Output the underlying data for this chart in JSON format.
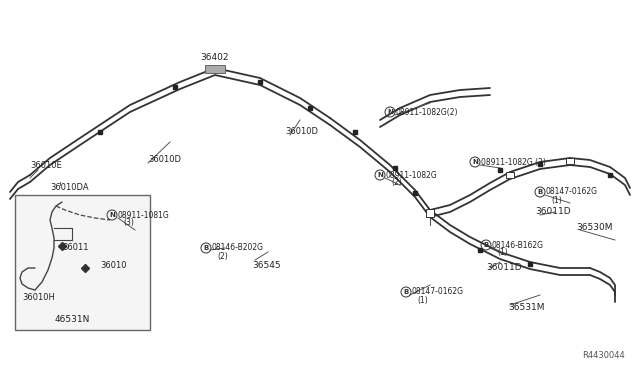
{
  "bg_color": "#ffffff",
  "line_color": "#333333",
  "text_color": "#222222",
  "reference_code": "R4430044",
  "figsize": [
    6.4,
    3.72
  ],
  "dpi": 100,
  "xlim": [
    0,
    640
  ],
  "ylim": [
    0,
    372
  ]
}
